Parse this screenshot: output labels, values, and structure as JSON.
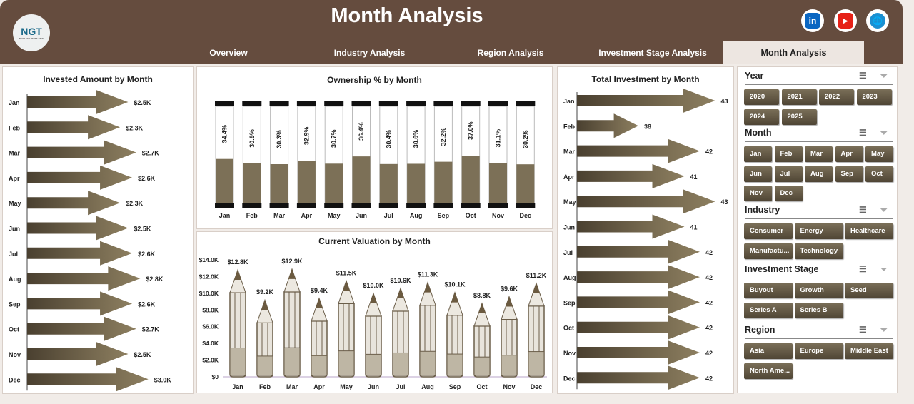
{
  "header": {
    "title": "Month Analysis",
    "logo_text": "NGT",
    "logo_sub": "NEXT GEN TEMPLATES",
    "tabs": [
      "Overview",
      "Industry Analysis",
      "Region Analysis",
      "Investment Stage Analysis",
      "Month Analysis"
    ],
    "active_tab": "Month Analysis",
    "social": [
      {
        "name": "linkedin-icon",
        "label": "in",
        "color": "#0a66c2"
      },
      {
        "name": "youtube-icon",
        "label": "▶",
        "color": "#e62117"
      },
      {
        "name": "globe-icon",
        "label": "🌐",
        "color": "#1a8fd1"
      }
    ]
  },
  "chart_data": [
    {
      "type": "bar",
      "orientation": "horizontal",
      "title": "Invested Amount by Month",
      "categories": [
        "Jan",
        "Feb",
        "Mar",
        "Apr",
        "May",
        "Jun",
        "Jul",
        "Aug",
        "Sep",
        "Oct",
        "Nov",
        "Dec"
      ],
      "values": [
        2.5,
        2.3,
        2.7,
        2.6,
        2.3,
        2.5,
        2.6,
        2.8,
        2.6,
        2.7,
        2.5,
        3.0
      ],
      "labels": [
        "$2.5K",
        "$2.3K",
        "$2.7K",
        "$2.6K",
        "$2.3K",
        "$2.5K",
        "$2.6K",
        "$2.8K",
        "$2.6K",
        "$2.7K",
        "$2.5K",
        "$3.0K"
      ],
      "unit": "K$",
      "xlim": [
        0,
        3.2
      ]
    },
    {
      "type": "bar",
      "title": "Ownership % by Month",
      "categories": [
        "Jan",
        "Feb",
        "Mar",
        "Apr",
        "May",
        "Jun",
        "Jul",
        "Aug",
        "Sep",
        "Oct",
        "Nov",
        "Dec"
      ],
      "values": [
        34.4,
        30.9,
        30.3,
        32.9,
        30.7,
        36.4,
        30.4,
        30.6,
        32.2,
        37.0,
        31.1,
        30.2
      ],
      "labels": [
        "34.4%",
        "30.9%",
        "30.3%",
        "32.9%",
        "30.7%",
        "36.4%",
        "30.4%",
        "30.6%",
        "32.2%",
        "37.0%",
        "31.1%",
        "30.2%"
      ],
      "ylim": [
        0,
        100
      ]
    },
    {
      "type": "bar",
      "title": "Current Valuation by Month",
      "categories": [
        "Jan",
        "Feb",
        "Mar",
        "Apr",
        "May",
        "Jun",
        "Jul",
        "Aug",
        "Sep",
        "Oct",
        "Nov",
        "Dec"
      ],
      "values": [
        12.8,
        9.2,
        12.9,
        9.4,
        11.5,
        10.0,
        10.6,
        11.3,
        10.1,
        8.8,
        9.6,
        11.2
      ],
      "labels": [
        "$12.8K",
        "$9.2K",
        "$12.9K",
        "$9.4K",
        "$11.5K",
        "$10.0K",
        "$10.6K",
        "$11.3K",
        "$10.1K",
        "$8.8K",
        "$9.6K",
        "$11.2K"
      ],
      "yticks": [
        "$0",
        "$2.0K",
        "$4.0K",
        "$6.0K",
        "$8.0K",
        "$10.0K",
        "$12.0K",
        "$14.0K"
      ],
      "ylim": [
        0,
        14
      ]
    },
    {
      "type": "bar",
      "orientation": "horizontal",
      "title": "Total Investment by Month",
      "categories": [
        "Jan",
        "Feb",
        "Mar",
        "Apr",
        "May",
        "Jun",
        "Jul",
        "Aug",
        "Sep",
        "Oct",
        "Nov",
        "Dec"
      ],
      "values": [
        43,
        38,
        42,
        41,
        43,
        41,
        42,
        42,
        42,
        42,
        42,
        42
      ],
      "labels": [
        "43",
        "38",
        "42",
        "41",
        "43",
        "41",
        "42",
        "42",
        "42",
        "42",
        "42",
        "42"
      ],
      "xlim": [
        34,
        44
      ]
    }
  ],
  "colors": {
    "header": "#654c3e",
    "accent": "#7a6f58",
    "bar_fill": "#7c7057",
    "bar_dark": "#4a4030"
  },
  "slicers": [
    {
      "title": "Year",
      "items": [
        "2020",
        "2021",
        "2022",
        "2023",
        "2024",
        "2025"
      ]
    },
    {
      "title": "Month",
      "items": [
        "Jan",
        "Feb",
        "Mar",
        "Apr",
        "May",
        "Jun",
        "Jul",
        "Aug",
        "Sep",
        "Oct",
        "Nov",
        "Dec"
      ]
    },
    {
      "title": "Industry",
      "items": [
        "Consumer",
        "Energy",
        "Healthcare",
        "Manufactu...",
        "Technology"
      ]
    },
    {
      "title": "Investment Stage",
      "items": [
        "Buyout",
        "Growth",
        "Seed",
        "Series A",
        "Series B"
      ]
    },
    {
      "title": "Region",
      "items": [
        "Asia",
        "Europe",
        "Middle East",
        "North Ame..."
      ]
    }
  ]
}
